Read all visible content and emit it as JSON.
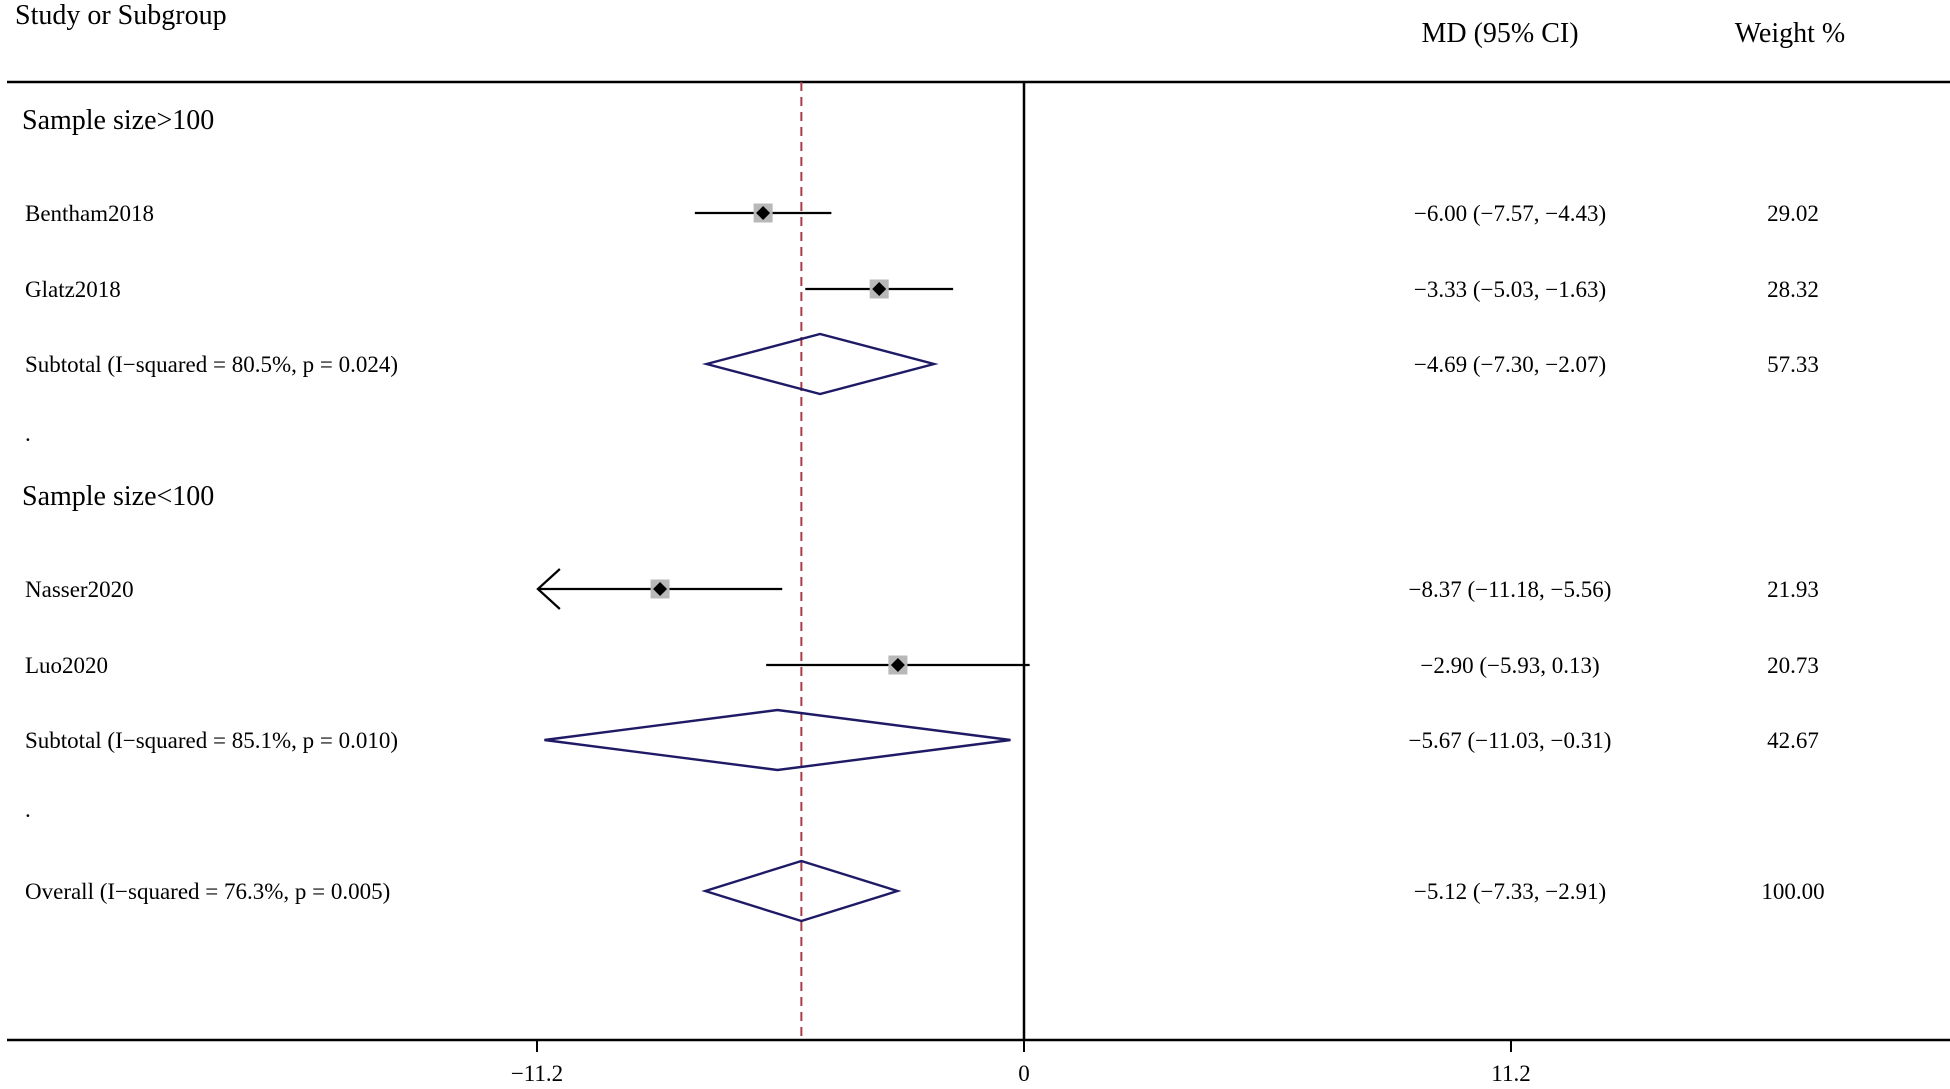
{
  "headers": {
    "study": "Study or Subgroup",
    "effect": "MD (95% CI)",
    "weight": "Weight %"
  },
  "colors": {
    "axis": "#000000",
    "ci_line": "#000000",
    "box": "#b8b8b8",
    "point": "#000000",
    "diamond": "#1f1a66",
    "overall_line": "#a83a4a"
  },
  "chart_data": {
    "type": "forest",
    "measure": "MD",
    "x_ticks": [
      -11.2,
      0,
      11.2
    ],
    "x_tick_labels": [
      "−11.2",
      "0",
      "11.2"
    ],
    "xlim": [
      -11.2,
      11.2
    ],
    "null_line": 0,
    "overall_effect": -5.12,
    "rows": [
      {
        "kind": "group",
        "label": "Sample size>100"
      },
      {
        "kind": "study",
        "label": "Bentham2018",
        "est": -6.0,
        "lo": -7.57,
        "hi": -4.43,
        "ci_text": "−6.00 (−7.57, −4.43)",
        "weight": "29.02",
        "weight_value": 29.02
      },
      {
        "kind": "study",
        "label": "Glatz2018",
        "est": -3.33,
        "lo": -5.03,
        "hi": -1.63,
        "ci_text": "−3.33 (−5.03, −1.63)",
        "weight": "28.32",
        "weight_value": 28.32
      },
      {
        "kind": "subtotal",
        "label": "Subtotal  (I−squared = 80.5%, p = 0.024)",
        "est": -4.69,
        "lo": -7.3,
        "hi": -2.07,
        "ci_text": "−4.69 (−7.30, −2.07)",
        "weight": "57.33"
      },
      {
        "kind": "spacer",
        "label": "."
      },
      {
        "kind": "group",
        "label": "Sample size<100"
      },
      {
        "kind": "study",
        "label": "Nasser2020",
        "est": -8.37,
        "lo": -11.18,
        "hi": -5.56,
        "ci_text": "−8.37 (−11.18, −5.56)",
        "weight": "21.93",
        "weight_value": 21.93,
        "arrow_left": true
      },
      {
        "kind": "study",
        "label": "Luo2020",
        "est": -2.9,
        "lo": -5.93,
        "hi": 0.13,
        "ci_text": "−2.90 (−5.93, 0.13)",
        "weight": "20.73",
        "weight_value": 20.73
      },
      {
        "kind": "subtotal",
        "label": "Subtotal  (I−squared = 85.1%, p = 0.010)",
        "est": -5.67,
        "lo": -11.03,
        "hi": -0.31,
        "ci_text": "−5.67 (−11.03, −0.31)",
        "weight": "42.67"
      },
      {
        "kind": "spacer",
        "label": "."
      },
      {
        "kind": "overall",
        "label": "Overall  (I−squared = 76.3%, p = 0.005)",
        "est": -5.12,
        "lo": -7.33,
        "hi": -2.91,
        "ci_text": "−5.12 (−7.33, −2.91)",
        "weight": "100.00"
      }
    ]
  }
}
